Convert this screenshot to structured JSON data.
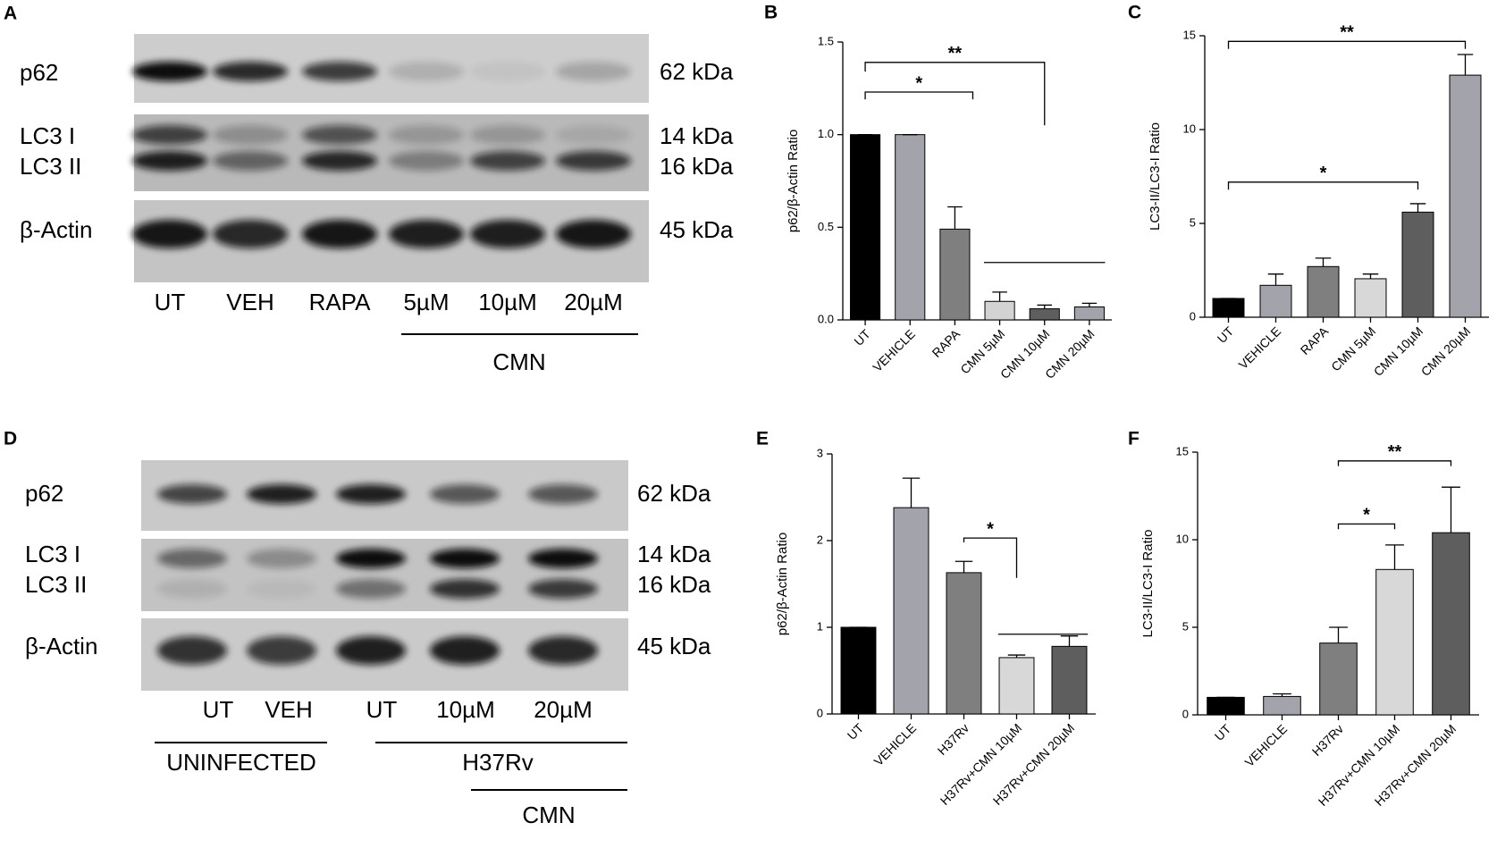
{
  "blots": [
    {
      "panel_label": "A",
      "rows": [
        "p62",
        "LC3 I",
        "LC3 II",
        "β-Actin"
      ],
      "sizes": [
        "62 kDa",
        "14 kDa",
        "16 kDa",
        "45 kDa"
      ],
      "lanes": [
        "UT",
        "VEH",
        "RAPA",
        "5µM",
        "10µM",
        "20µM"
      ],
      "groups": [
        "CMN"
      ]
    },
    {
      "panel_label": "D",
      "rows": [
        "p62",
        "LC3 I",
        "LC3 II",
        "β-Actin"
      ],
      "sizes": [
        "62 kDa",
        "14 kDa",
        "16 kDa",
        "45 kDa"
      ],
      "lanes": [
        "UT",
        "VEH",
        "UT",
        "10µM",
        "20µM"
      ],
      "groups": [
        "UNINFECTED",
        "H37Rv",
        "CMN"
      ]
    }
  ],
  "chart_data": [
    {
      "type": "bar",
      "panel_label": "B",
      "y_label": "p62/β-Actin Ratio",
      "categories": [
        "UT",
        "VEHICLE",
        "RAPA",
        "CMN 5µM",
        "CMN 10µM",
        "CMN 20µM"
      ],
      "values": [
        1.0,
        1.0,
        0.49,
        0.1,
        0.06,
        0.07
      ],
      "errors": [
        0,
        0,
        0.12,
        0.05,
        0.02,
        0.02
      ],
      "colors": [
        "#000000",
        "#a3a3ab",
        "#7f7f7f",
        "#d3d3d3",
        "#5e5e5e",
        "#a3a3ab"
      ],
      "ylim": [
        0,
        1.5
      ],
      "yticks": [
        {
          "value": 0,
          "label": "0.0"
        },
        0.5,
        {
          "value": 1,
          "label": "1.0"
        },
        1.5
      ],
      "annotations": [
        "*",
        "**"
      ]
    },
    {
      "type": "bar",
      "panel_label": "C",
      "y_label": "LC3-II/LC3-I Ratio",
      "categories": [
        "UT",
        "VEHICLE",
        "RAPA",
        "CMN 5µM",
        "CMN 10µM",
        "CMN 20µM"
      ],
      "values": [
        1.0,
        1.7,
        2.7,
        2.05,
        5.6,
        12.9
      ],
      "errors": [
        0,
        0.6,
        0.45,
        0.25,
        0.45,
        1.1
      ],
      "colors": [
        "#000000",
        "#a3a3ab",
        "#7f7f7f",
        "#d8d8d8",
        "#5e5e5e",
        "#a3a3ab"
      ],
      "ylim": [
        0,
        15
      ],
      "yticks": [
        0,
        5,
        10,
        15
      ],
      "annotations": [
        "**",
        "*"
      ]
    },
    {
      "type": "bar",
      "panel_label": "E",
      "y_label": "p62/β-Actin Ratio",
      "categories": [
        "UT",
        "VEHICLE",
        "H37Rv",
        "H37Rv+CMN 10µM",
        "H37Rv+CMN 20µM"
      ],
      "values": [
        1.0,
        2.38,
        1.63,
        0.65,
        0.78
      ],
      "errors": [
        0,
        0.34,
        0.13,
        0.03,
        0.12
      ],
      "colors": [
        "#000000",
        "#a3a3ab",
        "#7f7f7f",
        "#d8d8d8",
        "#5e5e5e"
      ],
      "ylim": [
        0,
        3
      ],
      "yticks": [
        0,
        1,
        2,
        3
      ],
      "annotations": [
        "*"
      ]
    },
    {
      "type": "bar",
      "panel_label": "F",
      "y_label": "LC3-II/LC3-I Ratio",
      "categories": [
        "UT",
        "VEHICLE",
        "H37Rv",
        "H37Rv+CMN 10µM",
        "H37Rv+CMN 20µM"
      ],
      "values": [
        1.0,
        1.05,
        4.1,
        8.3,
        10.4
      ],
      "errors": [
        0,
        0.15,
        0.9,
        1.4,
        2.6
      ],
      "colors": [
        "#000000",
        "#a3a3ab",
        "#7f7f7f",
        "#d8d8d8",
        "#5e5e5e"
      ],
      "ylim": [
        0,
        15
      ],
      "yticks": [
        0,
        5,
        10,
        15
      ],
      "annotations": [
        "*",
        "**"
      ]
    }
  ]
}
